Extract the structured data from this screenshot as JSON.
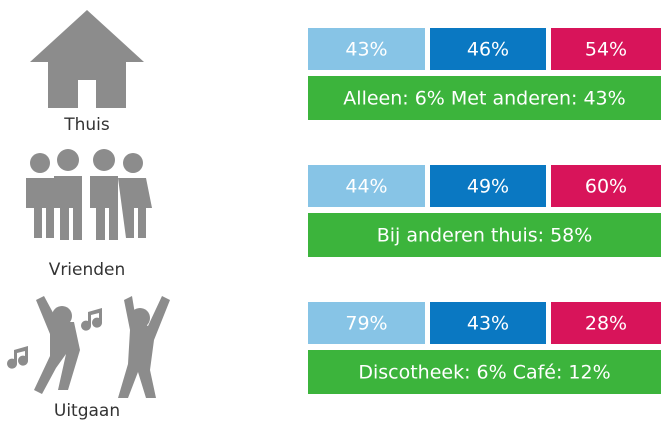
{
  "rows": [
    {
      "label": "Thuis",
      "values": [
        "43%",
        "46%",
        "54%"
      ],
      "summary": "Alleen: 6% Met anderen: 43%"
    },
    {
      "label": "Vrienden",
      "values": [
        "44%",
        "49%",
        "60%"
      ],
      "summary": "Bij anderen thuis: 58%"
    },
    {
      "label": "Uitgaan",
      "values": [
        "79%",
        "43%",
        "28%"
      ],
      "summary": "Discotheek: 6% Café: 12%"
    }
  ]
}
